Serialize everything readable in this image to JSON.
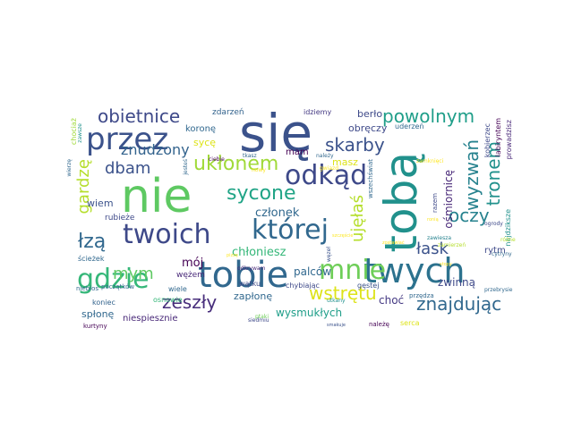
{
  "words": [
    {
      "text": "się",
      "color": "#3b528b"
    },
    {
      "text": "nie",
      "color": "#5ec962"
    },
    {
      "text": "tobą",
      "color": "#21918c"
    },
    {
      "text": "tobie",
      "color": "#31688e"
    },
    {
      "text": "twych",
      "color": "#2c728e"
    },
    {
      "text": "przez",
      "color": "#3b528b"
    },
    {
      "text": "odkąd",
      "color": "#3e4989"
    },
    {
      "text": "twoich",
      "color": "#3e4989"
    },
    {
      "text": "której",
      "color": "#31688e"
    },
    {
      "text": "gdzie",
      "color": "#35b779"
    },
    {
      "text": "mnie",
      "color": "#6ece58"
    },
    {
      "text": "obietnice",
      "color": "#3e4989"
    },
    {
      "text": "powolnym",
      "color": "#1f9e89"
    },
    {
      "text": "skarby",
      "color": "#3b528b"
    },
    {
      "text": "ukłonem",
      "color": "#a0da39"
    },
    {
      "text": "sycone",
      "color": "#20a486"
    },
    {
      "text": "wyzwań",
      "color": "#26828e"
    },
    {
      "text": "tronem",
      "color": "#21918c"
    },
    {
      "text": "oczy",
      "color": "#26828e"
    },
    {
      "text": "łzą",
      "color": "#31688e"
    },
    {
      "text": "dbam",
      "color": "#3b528b"
    },
    {
      "text": "zeszły",
      "color": "#472d7b"
    },
    {
      "text": "wstrętu",
      "color": "#dde318"
    },
    {
      "text": "znajdując",
      "color": "#31688e"
    },
    {
      "text": "łask",
      "color": "#3b528b"
    },
    {
      "text": "znudzony",
      "color": "#33638d"
    },
    {
      "text": "ujęłaś",
      "color": "#b5de2b"
    },
    {
      "text": "gardzę",
      "color": "#b5de2b"
    },
    {
      "text": "mym",
      "color": "#5ec962"
    },
    {
      "text": "członek",
      "color": "#31688e"
    },
    {
      "text": "chłoniesz",
      "color": "#35b779"
    },
    {
      "text": "wysmukłych",
      "color": "#1f9e89"
    },
    {
      "text": "ośmiornicę",
      "color": "#482878"
    },
    {
      "text": "zwinną",
      "color": "#3e4989"
    },
    {
      "text": "choć",
      "color": "#443983"
    },
    {
      "text": "palców",
      "color": "#31688e"
    },
    {
      "text": "zapłonę",
      "color": "#31688e"
    },
    {
      "text": "spłonę",
      "color": "#31688e"
    },
    {
      "text": "niespiesznie",
      "color": "#482878"
    },
    {
      "text": "wiem",
      "color": "#3b528b"
    },
    {
      "text": "mój",
      "color": "#440154"
    },
    {
      "text": "koronę",
      "color": "#31688e"
    },
    {
      "text": "sycę",
      "color": "#dde318"
    },
    {
      "text": "berło",
      "color": "#3e4989"
    },
    {
      "text": "obręczy",
      "color": "#3e4989"
    },
    {
      "text": "masz",
      "color": "#dde318"
    },
    {
      "text": "mam",
      "color": "#440154"
    },
    {
      "text": "rytm",
      "color": "#3e4989"
    },
    {
      "text": "zdarzeń",
      "color": "#33638d"
    },
    {
      "text": "idziemy",
      "color": "#443983"
    },
    {
      "text": "uderzeń",
      "color": "#31688e"
    },
    {
      "text": "kobierzec",
      "color": "#3e4989"
    },
    {
      "text": "labiryntem",
      "color": "#440154"
    },
    {
      "text": "prowadzisz",
      "color": "#482878"
    },
    {
      "text": "wężem",
      "color": "#482878"
    },
    {
      "text": "rubieże",
      "color": "#3e4989"
    },
    {
      "text": "ścieżek",
      "color": "#31688e"
    },
    {
      "text": "początków",
      "color": "#31688e"
    },
    {
      "text": "niebios",
      "color": "#31688e"
    },
    {
      "text": "koniec",
      "color": "#33638d"
    },
    {
      "text": "wiele",
      "color": "#31688e"
    },
    {
      "text": "kurtyny",
      "color": "#440154"
    },
    {
      "text": "wątku",
      "color": "#3e4989"
    },
    {
      "text": "chybiając",
      "color": "#3e4989"
    },
    {
      "text": "gęstej",
      "color": "#3b528b"
    },
    {
      "text": "najdziksze",
      "color": "#21918c"
    },
    {
      "text": "serca",
      "color": "#dde318"
    },
    {
      "text": "należę",
      "color": "#440154"
    },
    {
      "text": "przędza",
      "color": "#31688e"
    },
    {
      "text": "przebrysie",
      "color": "#31688e"
    },
    {
      "text": "odkrywam",
      "color": "#482878"
    },
    {
      "text": "siedmiu",
      "color": "#3e4989"
    },
    {
      "text": "ciebie",
      "color": "#440154"
    },
    {
      "text": "tkasz",
      "color": "#31688e"
    },
    {
      "text": "należy",
      "color": "#31688e"
    },
    {
      "text": "jesteś",
      "color": "#31688e"
    },
    {
      "text": "wierzę",
      "color": "#31688e"
    },
    {
      "text": "chociaż",
      "color": "#a0da39"
    },
    {
      "text": "osnowie",
      "color": "#35b779"
    },
    {
      "text": "ptaki",
      "color": "#6ece58"
    },
    {
      "text": "utkany",
      "color": "#21918c"
    },
    {
      "text": "węzeł",
      "color": "#3b528b"
    },
    {
      "text": "zawiesza",
      "color": "#26828e"
    },
    {
      "text": "cytryny",
      "color": "#31688e"
    },
    {
      "text": "ogrody",
      "color": "#3e4989"
    },
    {
      "text": "różne",
      "color": "#b5de2b"
    },
    {
      "text": "zamierzeń",
      "color": "#b5de2b"
    },
    {
      "text": "razem",
      "color": "#3e4989"
    },
    {
      "text": "gwiazd",
      "color": "#fde725"
    },
    {
      "text": "nowy",
      "color": "#fde725"
    },
    {
      "text": "zamknięci",
      "color": "#fde725"
    },
    {
      "text": "smakuje",
      "color": "#3b528b"
    },
    {
      "text": "pizzę",
      "color": "#fde725"
    },
    {
      "text": "stopy",
      "color": "#fde725"
    },
    {
      "text": "szczęście",
      "color": "#fde725"
    },
    {
      "text": "zostawiać",
      "color": "#fde725"
    },
    {
      "text": "ronią",
      "color": "#fde725"
    },
    {
      "text": "wszechświat",
      "color": "#31688e"
    },
    {
      "text": "zawsze",
      "color": "#21918c"
    }
  ]
}
